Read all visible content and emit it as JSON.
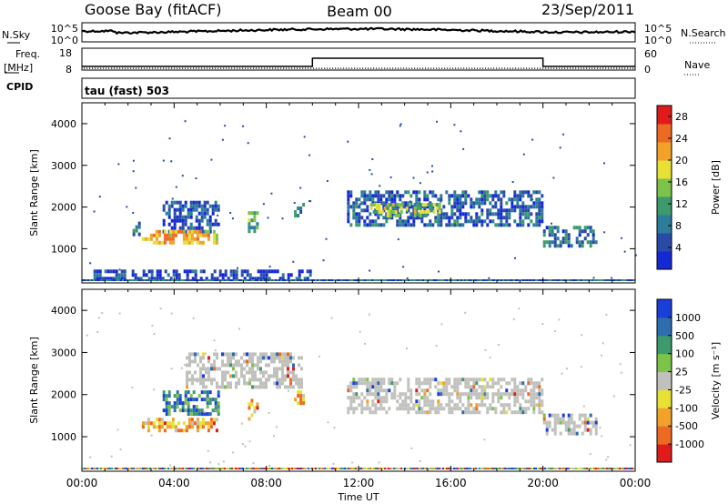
{
  "header": {
    "station": "Goose Bay (fitACF)",
    "beam": "Beam 00",
    "date": "23/Sep/2011"
  },
  "top_panels": {
    "left_labels": {
      "nsky": "N.Sky",
      "freq": "Freq.",
      "freq_unit": "[MHz]",
      "cpid": "CPID"
    },
    "right_labels": {
      "nsearch": "N.Search",
      "nave": "Nave"
    },
    "noise_left_ticks": [
      "10^5",
      "10^0"
    ],
    "noise_right_ticks": [
      "10^5",
      "10^0"
    ],
    "freq_left_ticks": [
      "18",
      "8"
    ],
    "nave_right_ticks": [
      "60",
      "0"
    ],
    "cpid_text": "tau (fast) 503"
  },
  "chart_data": [
    {
      "type": "heatmap",
      "title": "",
      "xlabel": "",
      "ylabel": "Slant Range [km]",
      "ylim": [
        180,
        4500
      ],
      "yticks": [
        "1000",
        "2000",
        "3000",
        "4000"
      ],
      "colorbar": {
        "label": "Power [dB]",
        "ticks": [
          "4",
          "8",
          "12",
          "16",
          "20",
          "24",
          "28"
        ],
        "range": [
          0,
          30
        ],
        "colors": [
          "#1528d6",
          "#2a4aa8",
          "#2b7d9a",
          "#3c9a6c",
          "#7cc34a",
          "#e7e035",
          "#f2a12a",
          "#ee6a22",
          "#e01b1b"
        ]
      },
      "regions": [
        {
          "x": [
            3.5,
            5.9
          ],
          "y": [
            1450,
            2150
          ],
          "level": 0.15
        },
        {
          "x": [
            2.6,
            5.8
          ],
          "y": [
            1150,
            1450
          ],
          "level": 0.7
        },
        {
          "x": [
            2.2,
            2.5
          ],
          "y": [
            1350,
            1650
          ],
          "level": 0.3
        },
        {
          "x": [
            7.2,
            7.6
          ],
          "y": [
            1450,
            1900
          ],
          "level": 0.4
        },
        {
          "x": [
            9.2,
            9.6
          ],
          "y": [
            1800,
            2100
          ],
          "level": 0.3
        },
        {
          "x": [
            11.5,
            20.0
          ],
          "y": [
            1600,
            2400
          ],
          "level": 0.2
        },
        {
          "x": [
            12.5,
            15.5
          ],
          "y": [
            1800,
            2100
          ],
          "level": 0.5
        },
        {
          "x": [
            20.0,
            22.3
          ],
          "y": [
            1050,
            1550
          ],
          "level": 0.25
        },
        {
          "x": [
            0.5,
            10.0
          ],
          "y": [
            250,
            500
          ],
          "level": 0.1
        }
      ]
    },
    {
      "type": "heatmap",
      "title": "",
      "xlabel": "Time UT",
      "ylabel": "Slant Range [km]",
      "ylim": [
        180,
        4500
      ],
      "yticks": [
        "1000",
        "2000",
        "3000",
        "4000"
      ],
      "xticks": [
        "00:00",
        "04:00",
        "08:00",
        "12:00",
        "16:00",
        "20:00",
        "00:00"
      ],
      "xlim_hours": [
        0,
        24
      ],
      "colorbar": {
        "label": "Velocity [m s⁻¹]",
        "ticks": [
          "1000",
          "500",
          "100",
          "25",
          "-25",
          "-100",
          "-500",
          "-1000"
        ],
        "colors": [
          "#1a3fd8",
          "#2d6eb0",
          "#3c9a6c",
          "#7cc34a",
          "#c0c0bc",
          "#e7e035",
          "#f2a12a",
          "#ee6a22",
          "#e01b1b"
        ]
      },
      "regions": [
        {
          "x": [
            2.6,
            5.8
          ],
          "y": [
            1150,
            1450
          ],
          "level": 0.7
        },
        {
          "x": [
            3.5,
            5.9
          ],
          "y": [
            1500,
            2100
          ],
          "level": 0.2
        },
        {
          "x": [
            11.5,
            20.0
          ],
          "y": [
            1600,
            2400
          ],
          "level": 0.45
        },
        {
          "x": [
            20.0,
            22.3
          ],
          "y": [
            1050,
            1550
          ],
          "level": 0.45
        },
        {
          "x": [
            4.5,
            9.5
          ],
          "y": [
            2200,
            3000
          ],
          "level": 0.45
        },
        {
          "x": [
            7.2,
            7.6
          ],
          "y": [
            1450,
            1900
          ],
          "level": 0.7
        },
        {
          "x": [
            9.2,
            9.6
          ],
          "y": [
            1800,
            2100
          ],
          "level": 0.7
        }
      ]
    }
  ]
}
